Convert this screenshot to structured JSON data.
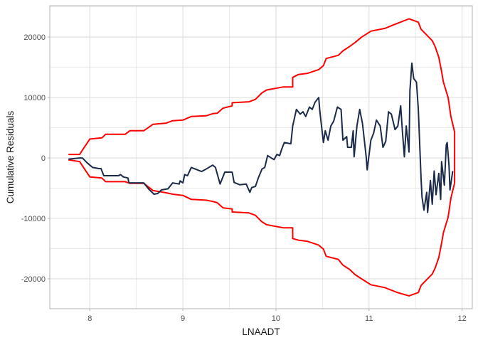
{
  "chart_data": {
    "type": "line",
    "title": "",
    "xlabel": "LNAADT",
    "ylabel": "Cumulative Residuals",
    "xlim": [
      7.57,
      12.11
    ],
    "ylim": [
      -24950,
      25200
    ],
    "x_ticks": [
      8,
      9,
      10,
      11,
      12
    ],
    "y_ticks": [
      -20000,
      -10000,
      0,
      10000,
      20000
    ],
    "x_tick_labels": [
      "8",
      "9",
      "10",
      "11",
      "12"
    ],
    "y_tick_labels": [
      "-20000",
      "-10000",
      "0",
      "10000",
      "20000"
    ],
    "grid": true,
    "legend": "none",
    "colors": {
      "residuals": "#1B2A49",
      "bounds": "#FF0000",
      "grid": "#DEDEDE",
      "border": "#B3B3B3"
    },
    "series": [
      {
        "role": "cumulative residuals",
        "points": [
          [
            7.77,
            -200
          ],
          [
            7.89,
            0
          ],
          [
            7.92,
            0
          ],
          [
            7.97,
            -780
          ],
          [
            8.03,
            -1570
          ],
          [
            8.1,
            -1760
          ],
          [
            8.12,
            -1760
          ],
          [
            8.15,
            -2940
          ],
          [
            8.31,
            -2940
          ],
          [
            8.33,
            -2750
          ],
          [
            8.36,
            -3140
          ],
          [
            8.41,
            -3330
          ],
          [
            8.42,
            -4120
          ],
          [
            8.58,
            -4120
          ],
          [
            8.63,
            -5100
          ],
          [
            8.69,
            -6000
          ],
          [
            8.73,
            -5880
          ],
          [
            8.77,
            -5290
          ],
          [
            8.84,
            -5100
          ],
          [
            8.89,
            -4120
          ],
          [
            8.96,
            -4310
          ],
          [
            8.97,
            -3800
          ],
          [
            9.0,
            -4120
          ],
          [
            9.02,
            -2750
          ],
          [
            9.05,
            -2940
          ],
          [
            9.09,
            -1570
          ],
          [
            9.2,
            -2240
          ],
          [
            9.25,
            -1840
          ],
          [
            9.32,
            -1180
          ],
          [
            9.35,
            -1570
          ],
          [
            9.4,
            -4310
          ],
          [
            9.45,
            -2350
          ],
          [
            9.53,
            -2350
          ],
          [
            9.55,
            -4040
          ],
          [
            9.61,
            -4430
          ],
          [
            9.68,
            -4310
          ],
          [
            9.72,
            -5690
          ],
          [
            9.74,
            -4900
          ],
          [
            9.78,
            -4710
          ],
          [
            9.81,
            -3330
          ],
          [
            9.85,
            -1840
          ],
          [
            9.88,
            -1570
          ],
          [
            9.91,
            390
          ],
          [
            9.95,
            0
          ],
          [
            9.98,
            -270
          ],
          [
            10.01,
            590
          ],
          [
            10.04,
            390
          ],
          [
            10.06,
            1370
          ],
          [
            10.09,
            2550
          ],
          [
            10.16,
            2350
          ],
          [
            10.18,
            5290
          ],
          [
            10.22,
            8040
          ],
          [
            10.26,
            7250
          ],
          [
            10.29,
            7650
          ],
          [
            10.32,
            6860
          ],
          [
            10.36,
            8430
          ],
          [
            10.39,
            8040
          ],
          [
            10.42,
            9220
          ],
          [
            10.46,
            10000
          ],
          [
            10.47,
            8040
          ],
          [
            10.49,
            5290
          ],
          [
            10.51,
            2550
          ],
          [
            10.53,
            4510
          ],
          [
            10.56,
            2940
          ],
          [
            10.59,
            5290
          ],
          [
            10.62,
            6080
          ],
          [
            10.66,
            8430
          ],
          [
            10.7,
            8040
          ],
          [
            10.72,
            2940
          ],
          [
            10.76,
            3530
          ],
          [
            10.77,
            1760
          ],
          [
            10.81,
            1760
          ],
          [
            10.83,
            4510
          ],
          [
            10.84,
            200
          ],
          [
            10.87,
            5290
          ],
          [
            10.9,
            8040
          ],
          [
            10.93,
            5690
          ],
          [
            10.97,
            200
          ],
          [
            10.98,
            -1960
          ],
          [
            11.02,
            2940
          ],
          [
            11.05,
            4120
          ],
          [
            11.08,
            6270
          ],
          [
            11.12,
            5290
          ],
          [
            11.15,
            1760
          ],
          [
            11.18,
            2750
          ],
          [
            11.21,
            7650
          ],
          [
            11.24,
            7250
          ],
          [
            11.28,
            4710
          ],
          [
            11.31,
            5290
          ],
          [
            11.34,
            8630
          ],
          [
            11.36,
            4120
          ],
          [
            11.38,
            200
          ],
          [
            11.4,
            5290
          ],
          [
            11.43,
            980
          ],
          [
            11.44,
            11180
          ],
          [
            11.46,
            15690
          ],
          [
            11.48,
            13140
          ],
          [
            11.51,
            12550
          ],
          [
            11.53,
            8040
          ],
          [
            11.56,
            -3530
          ],
          [
            11.57,
            -6470
          ],
          [
            11.59,
            -8630
          ],
          [
            11.62,
            -5690
          ],
          [
            11.63,
            -9020
          ],
          [
            11.66,
            -3730
          ],
          [
            11.68,
            -7650
          ],
          [
            11.7,
            -2160
          ],
          [
            11.72,
            -6080
          ],
          [
            11.75,
            -2550
          ],
          [
            11.77,
            -6860
          ],
          [
            11.78,
            -590
          ],
          [
            11.81,
            -4510
          ],
          [
            11.83,
            2160
          ],
          [
            11.84,
            2550
          ],
          [
            11.86,
            -1370
          ],
          [
            11.87,
            -5290
          ],
          [
            11.9,
            -2160
          ]
        ]
      },
      {
        "role": "upper bound",
        "points": [
          [
            7.77,
            590
          ],
          [
            7.89,
            590
          ],
          [
            8.0,
            3140
          ],
          [
            8.13,
            3330
          ],
          [
            8.17,
            3920
          ],
          [
            8.38,
            3920
          ],
          [
            8.43,
            4500
          ],
          [
            8.58,
            4500
          ],
          [
            8.68,
            5570
          ],
          [
            8.82,
            5760
          ],
          [
            8.89,
            6160
          ],
          [
            9.0,
            6270
          ],
          [
            9.09,
            6860
          ],
          [
            9.25,
            6980
          ],
          [
            9.32,
            7330
          ],
          [
            9.37,
            7410
          ],
          [
            9.43,
            8240
          ],
          [
            9.53,
            8630
          ],
          [
            9.53,
            9140
          ],
          [
            9.71,
            9290
          ],
          [
            9.78,
            9690
          ],
          [
            9.85,
            10780
          ],
          [
            9.9,
            11250
          ],
          [
            10.08,
            11760
          ],
          [
            10.18,
            11760
          ],
          [
            10.18,
            13330
          ],
          [
            10.24,
            13800
          ],
          [
            10.34,
            14000
          ],
          [
            10.46,
            14630
          ],
          [
            10.51,
            15290
          ],
          [
            10.54,
            16470
          ],
          [
            10.67,
            16980
          ],
          [
            10.72,
            17730
          ],
          [
            10.79,
            18430
          ],
          [
            10.85,
            19100
          ],
          [
            10.92,
            20000
          ],
          [
            11.02,
            20980
          ],
          [
            11.17,
            21450
          ],
          [
            11.3,
            22240
          ],
          [
            11.43,
            23020
          ],
          [
            11.48,
            22750
          ],
          [
            11.53,
            22470
          ],
          [
            11.56,
            21290
          ],
          [
            11.68,
            19410
          ],
          [
            11.71,
            18430
          ],
          [
            11.75,
            16670
          ],
          [
            11.78,
            14310
          ],
          [
            11.8,
            12550
          ],
          [
            11.85,
            10000
          ],
          [
            11.88,
            6860
          ],
          [
            11.92,
            4310
          ],
          [
            11.92,
            -4120
          ]
        ]
      },
      {
        "role": "lower bound",
        "points": [
          [
            7.77,
            -300
          ],
          [
            7.89,
            -600
          ],
          [
            8.0,
            -3140
          ],
          [
            8.13,
            -3330
          ],
          [
            8.17,
            -3920
          ],
          [
            8.38,
            -3920
          ],
          [
            8.43,
            -4200
          ],
          [
            8.58,
            -4200
          ],
          [
            8.68,
            -5400
          ],
          [
            8.82,
            -5760
          ],
          [
            8.89,
            -6000
          ],
          [
            9.0,
            -6200
          ],
          [
            9.09,
            -6860
          ],
          [
            9.25,
            -6980
          ],
          [
            9.32,
            -7200
          ],
          [
            9.37,
            -7410
          ],
          [
            9.43,
            -8240
          ],
          [
            9.53,
            -8430
          ],
          [
            9.53,
            -8940
          ],
          [
            9.71,
            -9090
          ],
          [
            9.78,
            -9490
          ],
          [
            9.85,
            -10580
          ],
          [
            9.9,
            -11050
          ],
          [
            10.08,
            -11560
          ],
          [
            10.18,
            -11560
          ],
          [
            10.18,
            -13330
          ],
          [
            10.24,
            -13600
          ],
          [
            10.34,
            -13800
          ],
          [
            10.46,
            -14430
          ],
          [
            10.51,
            -15090
          ],
          [
            10.54,
            -16270
          ],
          [
            10.67,
            -16780
          ],
          [
            10.72,
            -17730
          ],
          [
            10.79,
            -18430
          ],
          [
            10.85,
            -19300
          ],
          [
            10.92,
            -20000
          ],
          [
            11.02,
            -20980
          ],
          [
            11.17,
            -21450
          ],
          [
            11.3,
            -22240
          ],
          [
            11.43,
            -22820
          ],
          [
            11.48,
            -22550
          ],
          [
            11.53,
            -22270
          ],
          [
            11.56,
            -21090
          ],
          [
            11.68,
            -19210
          ],
          [
            11.71,
            -18230
          ],
          [
            11.75,
            -16470
          ],
          [
            11.78,
            -14110
          ],
          [
            11.8,
            -12350
          ],
          [
            11.85,
            -9800
          ],
          [
            11.88,
            -6660
          ],
          [
            11.92,
            -4120
          ]
        ]
      }
    ]
  }
}
